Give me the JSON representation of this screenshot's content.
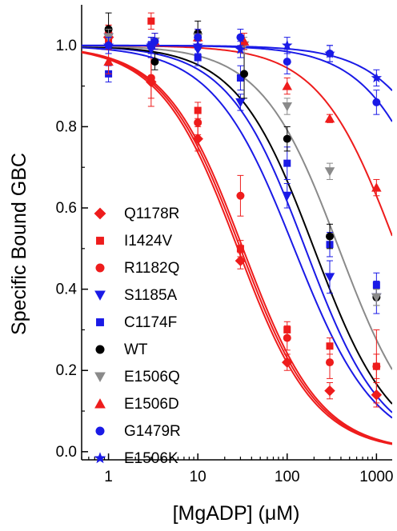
{
  "chart_data": {
    "type": "scatter",
    "ylabel": "Specific Bound GBC",
    "xlabel": "[MgADP] (μM)",
    "xscale": "log",
    "xlim": [
      0.5,
      1500
    ],
    "ylim": [
      -0.02,
      1.1
    ],
    "xticks": [
      1,
      10,
      100,
      1000
    ],
    "xtick_labels": [
      "1",
      "10",
      "100",
      "1000"
    ],
    "yticks": [
      0.0,
      0.2,
      0.4,
      0.6,
      0.8,
      1.0
    ],
    "ytick_labels": [
      "0.0",
      "0.2",
      "0.4",
      "0.6",
      "0.8",
      "1.0"
    ],
    "legend_position": "bottom-left",
    "colors": {
      "red": "#ee1c1c",
      "blue": "#1a1ae6",
      "black": "#000000",
      "gray": "#8a8a8a"
    },
    "series": [
      {
        "name": "Q1178R",
        "marker": "diamond",
        "color": "#ee1c1c",
        "curve_ic50": 28,
        "curve_n": 1.0,
        "x": [
          1,
          3,
          10,
          30,
          100,
          300,
          1000
        ],
        "y": [
          1.02,
          0.91,
          0.77,
          0.47,
          0.22,
          0.15,
          0.14
        ],
        "err": [
          0.03,
          0.06,
          0.03,
          0.02,
          0.02,
          0.02,
          0.03
        ]
      },
      {
        "name": "I1424V",
        "marker": "square",
        "color": "#ee1c1c",
        "curve_ic50": 32,
        "curve_n": 1.0,
        "x": [
          1,
          3,
          10,
          30,
          100,
          300,
          1000
        ],
        "y": [
          1.01,
          1.06,
          0.84,
          0.5,
          0.3,
          0.26,
          0.21
        ],
        "err": [
          0.02,
          0.02,
          0.02,
          0.02,
          0.02,
          0.02,
          0.03
        ]
      },
      {
        "name": "R1182Q",
        "marker": "circle",
        "color": "#ee1c1c",
        "curve_ic50": 30,
        "curve_n": 1.0,
        "x": [
          1,
          3,
          10,
          30,
          100,
          300,
          1000
        ],
        "y": [
          1.03,
          0.92,
          0.81,
          0.63,
          0.28,
          0.22,
          0.21
        ],
        "err": [
          0.02,
          0.05,
          0.03,
          0.05,
          0.03,
          0.04,
          0.09
        ]
      },
      {
        "name": "S1185A",
        "marker": "triangle-down",
        "color": "#1a1ae6",
        "curve_ic50": 120,
        "curve_n": 0.95,
        "x": [
          1,
          3,
          10,
          30,
          100,
          300,
          1000
        ],
        "y": [
          1.02,
          0.99,
          0.99,
          0.86,
          0.63,
          0.43,
          0.38
        ],
        "err": [
          0.02,
          0.02,
          0.02,
          0.02,
          0.03,
          0.04,
          0.04
        ]
      },
      {
        "name": "C1174F",
        "marker": "square",
        "color": "#1a1ae6",
        "curve_ic50": 160,
        "curve_n": 1.0,
        "x": [
          1,
          3,
          10,
          30,
          100,
          300,
          1000
        ],
        "y": [
          0.93,
          1.0,
          0.97,
          0.92,
          0.71,
          0.51,
          0.41
        ],
        "err": [
          0.02,
          0.02,
          0.02,
          0.03,
          0.04,
          0.03,
          0.03
        ]
      },
      {
        "name": "WT",
        "marker": "circle",
        "color": "#000000",
        "curve_ic50": 200,
        "curve_n": 1.0,
        "x": [
          1,
          3.3,
          10,
          33,
          100,
          300,
          1000
        ],
        "y": [
          1.04,
          0.96,
          1.03,
          0.93,
          0.77,
          0.53,
          0.38
        ],
        "err": [
          0.04,
          0.02,
          0.03,
          0.06,
          0.03,
          0.03,
          0.02
        ]
      },
      {
        "name": "E1506Q",
        "marker": "triangle-down",
        "color": "#8a8a8a",
        "curve_ic50": 380,
        "curve_n": 1.0,
        "x": [
          1,
          3.3,
          10,
          33,
          100,
          300,
          1000
        ],
        "y": [
          1.02,
          1.01,
          1.02,
          1.0,
          0.85,
          0.69,
          0.38
        ],
        "err": [
          0.02,
          0.02,
          0.02,
          0.02,
          0.02,
          0.02,
          0.02
        ]
      },
      {
        "name": "E1506D",
        "marker": "triangle-up",
        "color": "#ee1c1c",
        "curve_ic50": 1700,
        "curve_n": 1.0,
        "x": [
          1,
          3.3,
          10,
          33,
          100,
          300,
          1000
        ],
        "y": [
          0.96,
          1.01,
          1.02,
          1.01,
          0.9,
          0.82,
          0.65
        ],
        "err": [
          0.03,
          0.02,
          0.02,
          0.02,
          0.02,
          0.01,
          0.02
        ]
      },
      {
        "name": "G1479R",
        "marker": "circle",
        "color": "#1a1ae6",
        "curve_ic50": 6500,
        "curve_n": 1.0,
        "x": [
          1,
          3.3,
          10,
          30,
          100,
          300,
          1000
        ],
        "y": [
          1.0,
          1.01,
          1.02,
          1.02,
          0.96,
          0.98,
          0.86
        ],
        "err": [
          0.02,
          0.02,
          0.02,
          0.02,
          0.03,
          0.02,
          0.03
        ]
      },
      {
        "name": "E1506K",
        "marker": "star",
        "color": "#1a1ae6",
        "curve_ic50": 12000,
        "curve_n": 1.0,
        "x": [
          1,
          3,
          10,
          30,
          100,
          300,
          1000
        ],
        "y": [
          1.0,
          1.0,
          1.0,
          0.99,
          1.0,
          0.98,
          0.92
        ],
        "err": [
          0.02,
          0.02,
          0.02,
          0.02,
          0.02,
          0.02,
          0.02
        ]
      }
    ]
  }
}
